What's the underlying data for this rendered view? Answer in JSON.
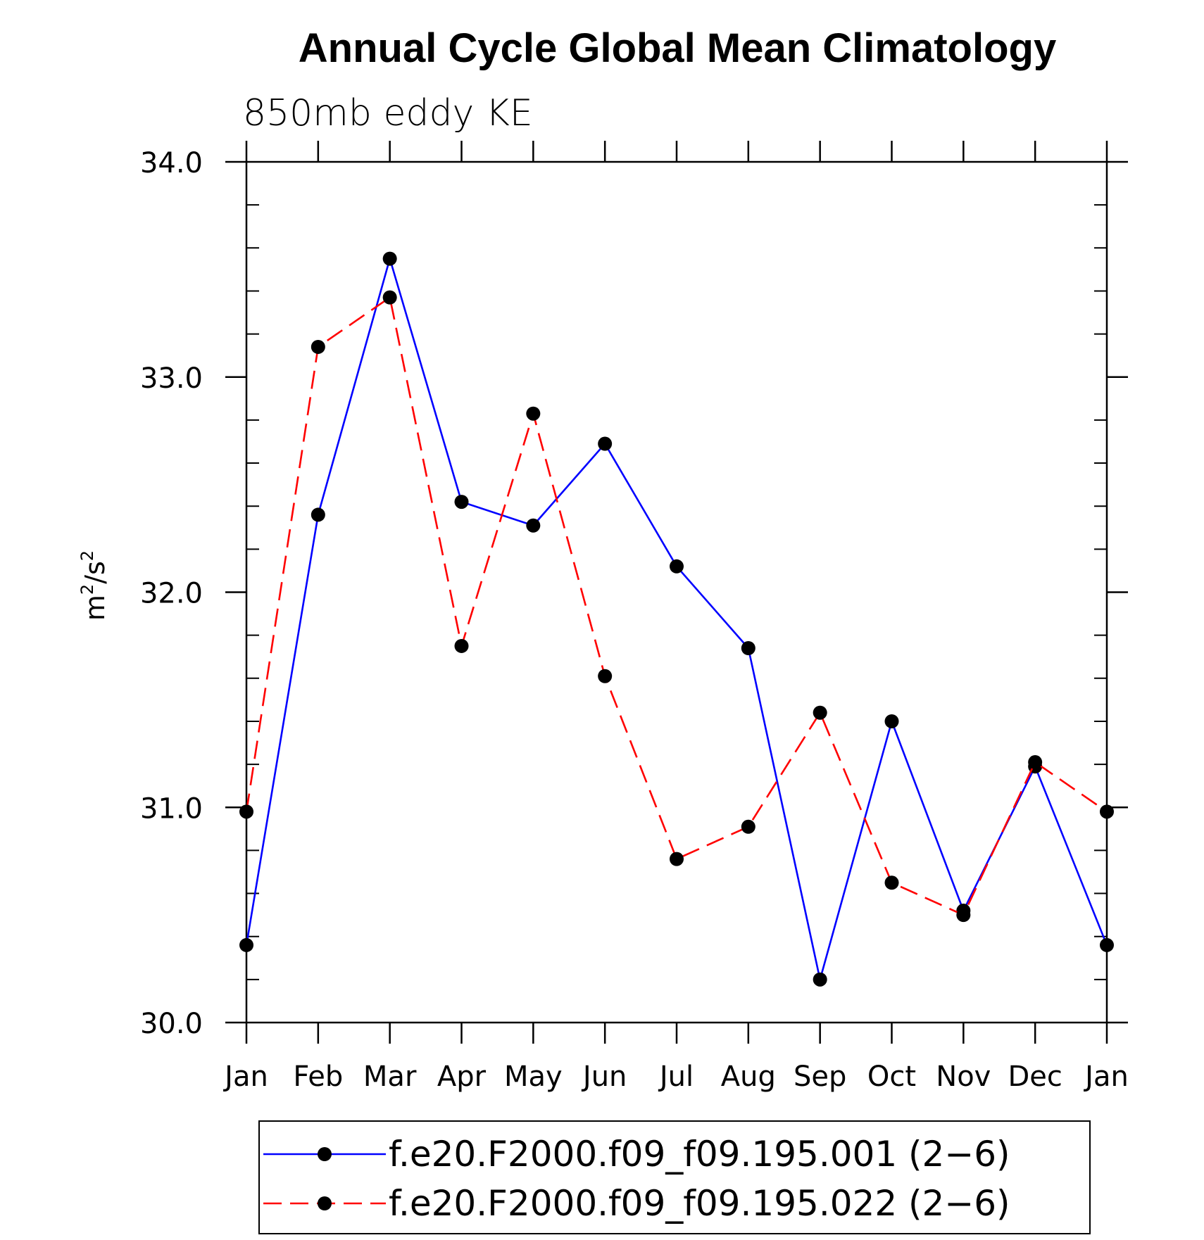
{
  "chart_data": {
    "type": "line",
    "title": "Annual Cycle Global Mean Climatology",
    "subtitle": "850mb eddy KE",
    "ylabel_base": "m",
    "ylabel_exp1": "2",
    "ylabel_mid": "/s",
    "ylabel_exp2": "2",
    "xlabel": "",
    "categories": [
      "Jan",
      "Feb",
      "Mar",
      "Apr",
      "May",
      "Jun",
      "Jul",
      "Aug",
      "Sep",
      "Oct",
      "Nov",
      "Dec",
      "Jan"
    ],
    "ylim": [
      30.0,
      34.0
    ],
    "yticks": [
      "30.0",
      "31.0",
      "32.0",
      "33.0",
      "34.0"
    ],
    "series": [
      {
        "name": "f.e20.F2000.f09_f09.195.001 (2−6)",
        "color": "#0000ff",
        "dash": "solid",
        "values": [
          30.36,
          32.36,
          33.55,
          32.42,
          32.31,
          32.69,
          32.12,
          31.74,
          30.2,
          31.4,
          30.52,
          31.19,
          30.36
        ]
      },
      {
        "name": "f.e20.F2000.f09_f09.195.022 (2−6)",
        "color": "#ff0000",
        "dash": "dashed",
        "values": [
          30.98,
          33.14,
          33.37,
          31.75,
          32.83,
          31.61,
          30.76,
          30.91,
          31.44,
          30.65,
          30.5,
          31.21,
          30.98
        ]
      }
    ],
    "legend": {
      "placement": "bottom-center"
    },
    "grid": false
  }
}
